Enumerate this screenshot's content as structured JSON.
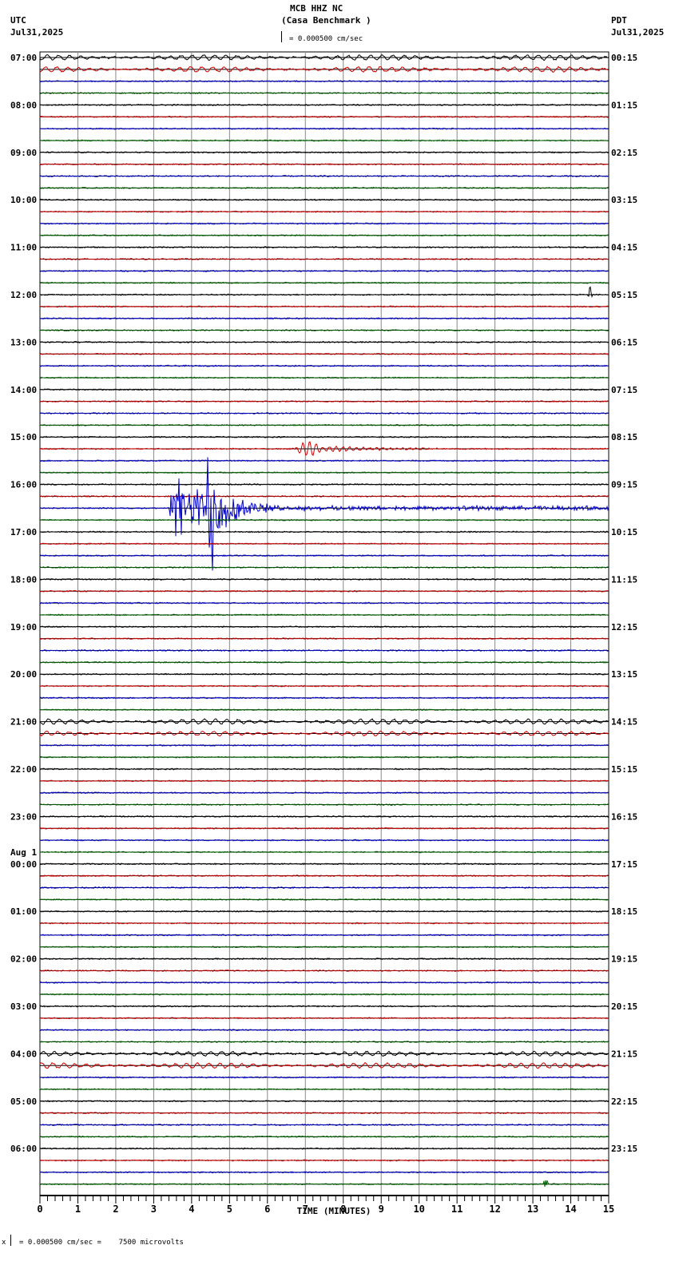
{
  "header": {
    "station": "MCB HHZ NC",
    "site": "(Casa Benchmark )",
    "scale_label": "= 0.000500 cm/sec",
    "left_tz": "UTC",
    "left_date": "Jul31,2025",
    "right_tz": "PDT",
    "right_date": "Jul31,2025"
  },
  "footer": {
    "scale_note": "= 0.000500 cm/sec =    7500 microvolts",
    "marker": "x"
  },
  "colors": {
    "trace_cycle": [
      "#000000",
      "#cc0000",
      "#0000cc",
      "#006600"
    ],
    "grid": "#888888"
  },
  "chart_data": {
    "type": "line",
    "title": "MCB HHZ NC (Casa Benchmark )",
    "xlabel": "TIME (MINUTES)",
    "ylabel": "",
    "xlim": [
      0,
      15
    ],
    "x_ticks": [
      "0",
      "1",
      "2",
      "3",
      "4",
      "5",
      "6",
      "7",
      "8",
      "9",
      "10",
      "11",
      "12",
      "13",
      "14",
      "15"
    ],
    "rows_per_hour": 4,
    "row_minutes": 15,
    "num_rows": 96,
    "left_labels": [
      {
        "row": 0,
        "text": "07:00"
      },
      {
        "row": 4,
        "text": "08:00"
      },
      {
        "row": 8,
        "text": "09:00"
      },
      {
        "row": 12,
        "text": "10:00"
      },
      {
        "row": 16,
        "text": "11:00"
      },
      {
        "row": 20,
        "text": "12:00"
      },
      {
        "row": 24,
        "text": "13:00"
      },
      {
        "row": 28,
        "text": "14:00"
      },
      {
        "row": 32,
        "text": "15:00"
      },
      {
        "row": 36,
        "text": "16:00"
      },
      {
        "row": 40,
        "text": "17:00"
      },
      {
        "row": 44,
        "text": "18:00"
      },
      {
        "row": 48,
        "text": "19:00"
      },
      {
        "row": 52,
        "text": "20:00"
      },
      {
        "row": 56,
        "text": "21:00"
      },
      {
        "row": 60,
        "text": "22:00"
      },
      {
        "row": 64,
        "text": "23:00"
      },
      {
        "row": 68,
        "text": "00:00",
        "pre": "Aug 1"
      },
      {
        "row": 72,
        "text": "01:00"
      },
      {
        "row": 76,
        "text": "02:00"
      },
      {
        "row": 80,
        "text": "03:00"
      },
      {
        "row": 84,
        "text": "04:00"
      },
      {
        "row": 88,
        "text": "05:00"
      },
      {
        "row": 92,
        "text": "06:00"
      }
    ],
    "right_labels": [
      {
        "row": 0,
        "text": "00:15"
      },
      {
        "row": 4,
        "text": "01:15"
      },
      {
        "row": 8,
        "text": "02:15"
      },
      {
        "row": 12,
        "text": "03:15"
      },
      {
        "row": 16,
        "text": "04:15"
      },
      {
        "row": 20,
        "text": "05:15"
      },
      {
        "row": 24,
        "text": "06:15"
      },
      {
        "row": 28,
        "text": "07:15"
      },
      {
        "row": 32,
        "text": "08:15"
      },
      {
        "row": 36,
        "text": "09:15"
      },
      {
        "row": 40,
        "text": "10:15"
      },
      {
        "row": 44,
        "text": "11:15"
      },
      {
        "row": 48,
        "text": "12:15"
      },
      {
        "row": 52,
        "text": "13:15"
      },
      {
        "row": 56,
        "text": "14:15"
      },
      {
        "row": 60,
        "text": "15:15"
      },
      {
        "row": 64,
        "text": "16:15"
      },
      {
        "row": 68,
        "text": "17:15"
      },
      {
        "row": 72,
        "text": "18:15"
      },
      {
        "row": 76,
        "text": "19:15"
      },
      {
        "row": 80,
        "text": "20:15"
      },
      {
        "row": 84,
        "text": "21:15"
      },
      {
        "row": 88,
        "text": "22:15"
      },
      {
        "row": 92,
        "text": "23:15"
      }
    ],
    "events": [
      {
        "row": 38,
        "type": "earthquake",
        "start_min": 3.4,
        "peak_min": 4.5,
        "end_min": 15,
        "peak_amp": 112
      },
      {
        "row": 33,
        "type": "teleseismic_wave",
        "start_min": 6.7,
        "end_min": 10.5,
        "amp": 9
      },
      {
        "row": 20,
        "type": "spike",
        "at_min": 14.5,
        "amp": 8
      },
      {
        "row": 95,
        "type": "spike",
        "at_min": 13.35,
        "amp": 7
      },
      {
        "row": 0,
        "type": "microseism",
        "amp": 3
      },
      {
        "row": 1,
        "type": "microseism",
        "amp": 3
      },
      {
        "row": 56,
        "type": "microseism",
        "amp": 3
      },
      {
        "row": 57,
        "type": "microseism",
        "amp": 2.5
      },
      {
        "row": 84,
        "type": "microseism",
        "amp": 2.5
      },
      {
        "row": 85,
        "type": "microseism",
        "amp": 3
      }
    ]
  }
}
